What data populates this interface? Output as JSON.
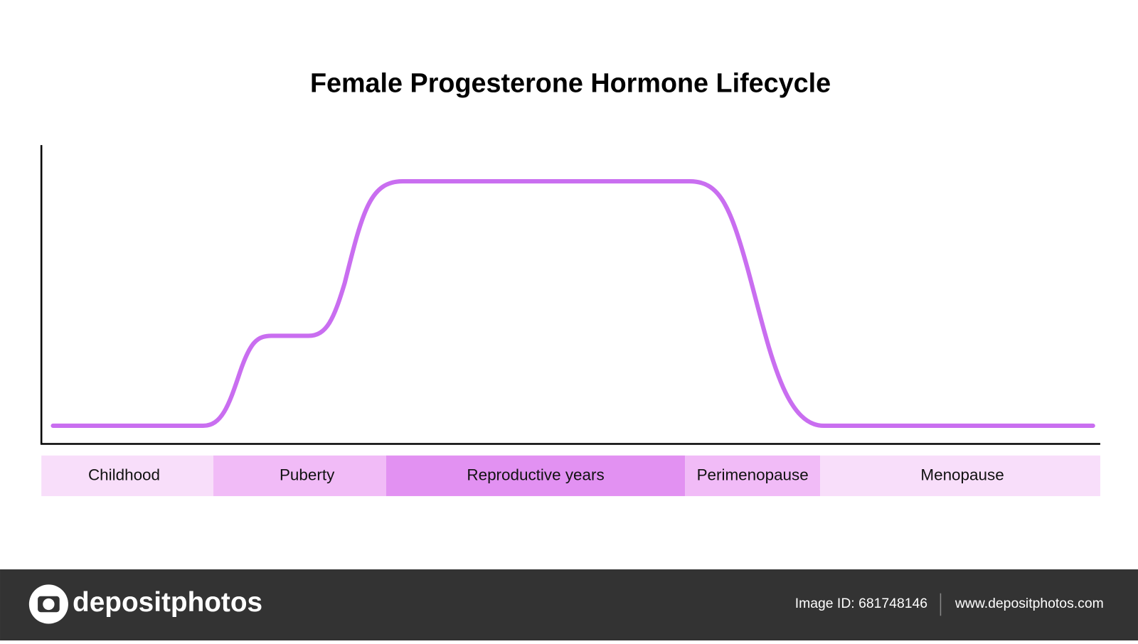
{
  "title": "Female Progesterone Hormone Lifecycle",
  "stages": [
    "Childhood",
    "Puberty",
    "Reproductive years",
    "Perimenopause",
    "Menopause"
  ],
  "footer": {
    "brand": "depositphotos",
    "image_id": "Image ID: 681748146",
    "site": "www.depositphotos.com"
  }
}
